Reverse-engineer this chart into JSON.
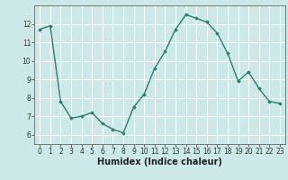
{
  "x": [
    0,
    1,
    2,
    3,
    4,
    5,
    6,
    7,
    8,
    9,
    10,
    11,
    12,
    13,
    14,
    15,
    16,
    17,
    18,
    19,
    20,
    21,
    22,
    23
  ],
  "y": [
    11.7,
    11.9,
    7.8,
    6.9,
    7.0,
    7.2,
    6.6,
    6.3,
    6.1,
    7.5,
    8.2,
    9.6,
    10.5,
    11.7,
    12.5,
    12.3,
    12.1,
    11.5,
    10.4,
    8.9,
    9.4,
    8.5,
    7.8,
    7.7
  ],
  "line_color": "#2e7d6e",
  "marker": "D",
  "markersize": 1.8,
  "linewidth": 1.0,
  "xlabel": "Humidex (Indice chaleur)",
  "xlabel_fontsize": 7,
  "ylim": [
    5.5,
    13.0
  ],
  "xlim": [
    -0.5,
    23.5
  ],
  "yticks": [
    6,
    7,
    8,
    9,
    10,
    11,
    12
  ],
  "xticks": [
    0,
    1,
    2,
    3,
    4,
    5,
    6,
    7,
    8,
    9,
    10,
    11,
    12,
    13,
    14,
    15,
    16,
    17,
    18,
    19,
    20,
    21,
    22,
    23
  ],
  "bg_color": "#cce8e8",
  "grid_color": "#ffffff",
  "tick_fontsize": 5.5,
  "spine_color": "#666666"
}
